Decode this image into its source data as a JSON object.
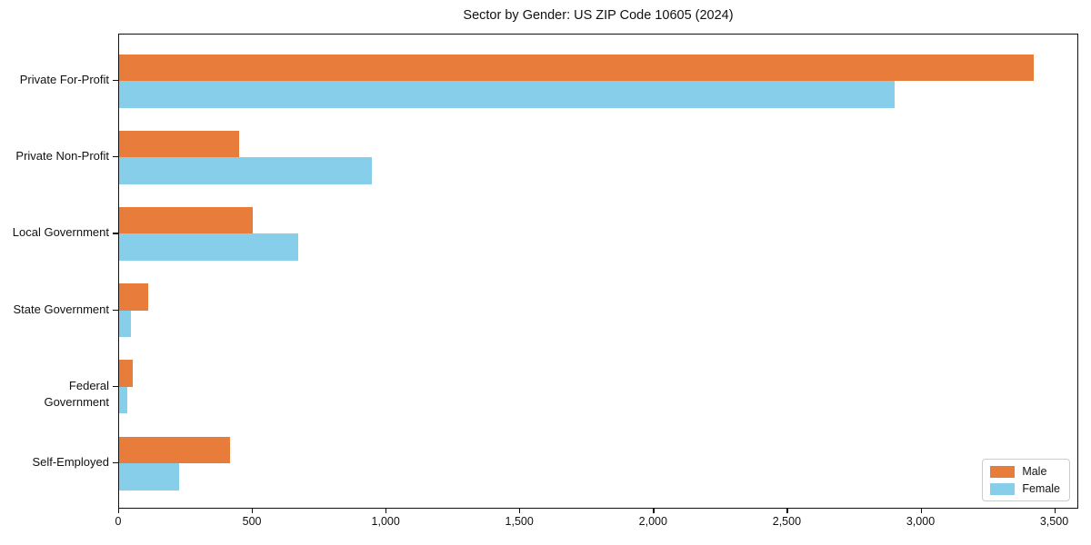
{
  "title": "Sector by Gender: US ZIP Code 10605 (2024)",
  "colors": {
    "male": "#e87c3b",
    "female": "#87ceeb",
    "axis": "#111111",
    "background": "#ffffff",
    "legend_border": "#cccccc"
  },
  "chart_data": {
    "type": "bar",
    "orientation": "horizontal",
    "title": "Sector by Gender: US ZIP Code 10605 (2024)",
    "categories": [
      "Private For-Profit",
      "Private Non-Profit",
      "Local Government",
      "State Government",
      "Federal Government",
      "Self-Employed"
    ],
    "series": [
      {
        "name": "Male",
        "color": "#e87c3b",
        "values": [
          3420,
          450,
          500,
          110,
          50,
          415
        ]
      },
      {
        "name": "Female",
        "color": "#87ceeb",
        "values": [
          2900,
          945,
          670,
          45,
          30,
          225
        ]
      }
    ],
    "xlabel": "",
    "ylabel": "",
    "xlim": [
      0,
      3590
    ],
    "xticks": [
      0,
      500,
      1000,
      1500,
      2000,
      2500,
      3000,
      3500
    ],
    "xtick_labels": [
      "0",
      "500",
      "1,000",
      "1,500",
      "2,000",
      "2,500",
      "3,000",
      "3,500"
    ],
    "grid": false,
    "legend": {
      "position": "lower right",
      "items": [
        "Male",
        "Female"
      ]
    }
  }
}
